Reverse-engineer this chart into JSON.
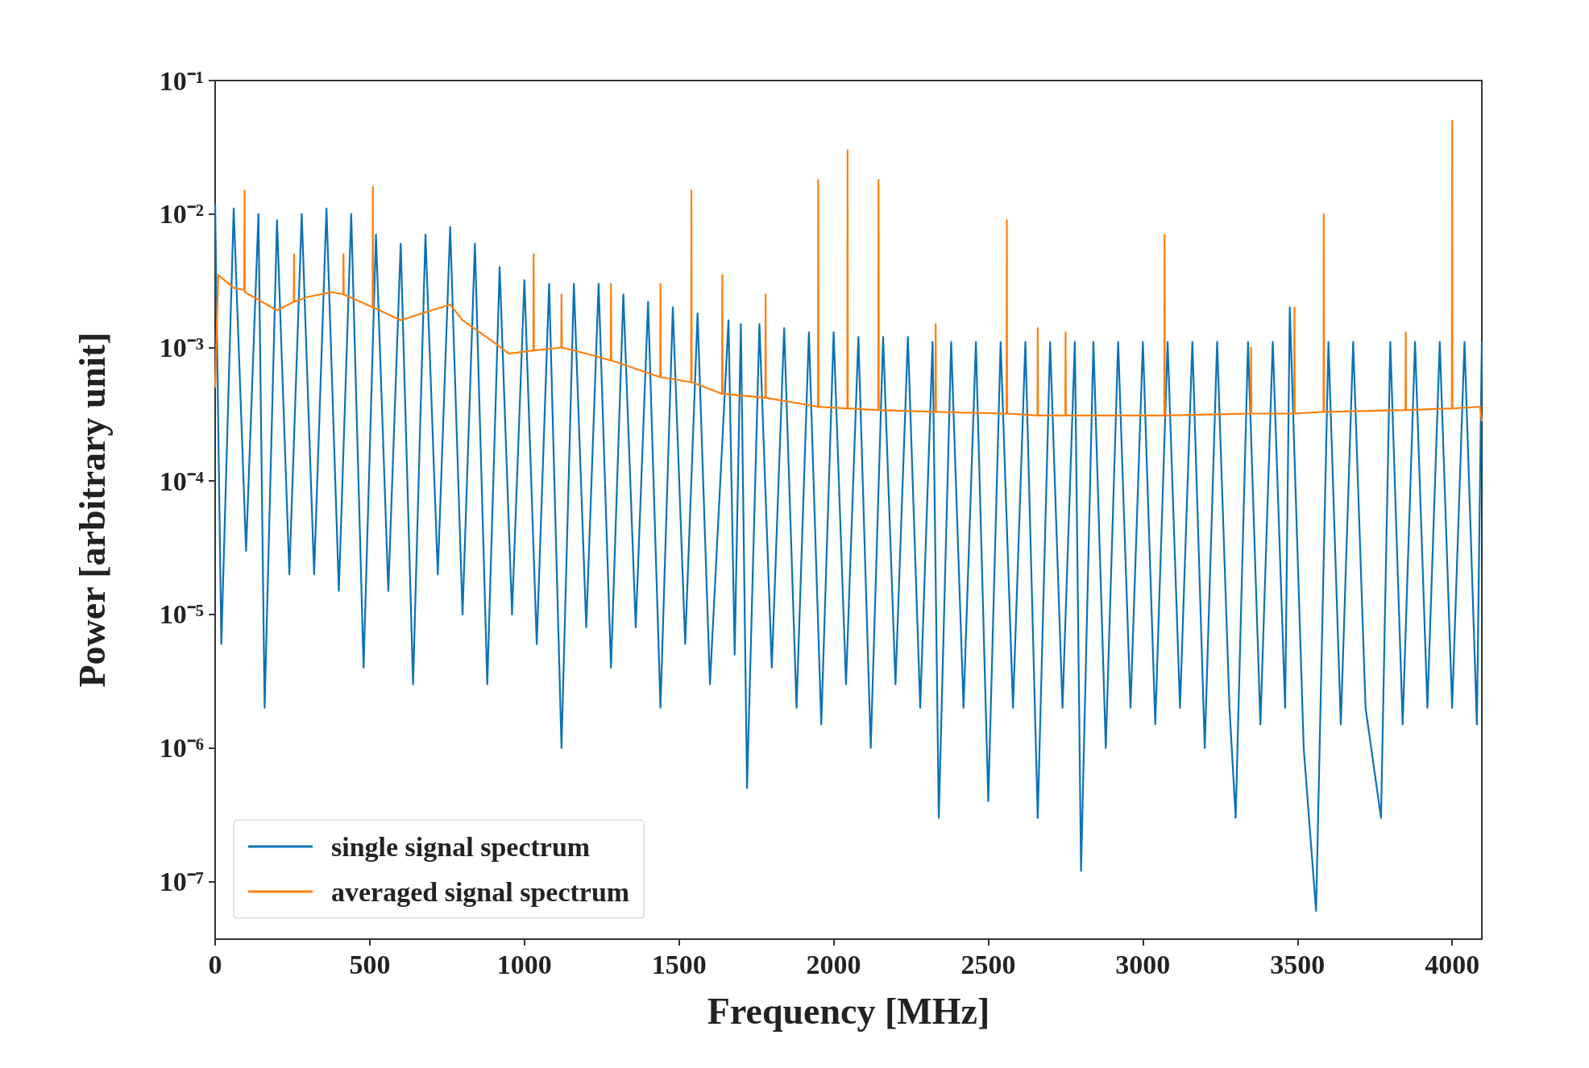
{
  "chart_data": {
    "type": "line",
    "xlabel": "Frequency [MHz]",
    "ylabel": "Power [arbitrary unit]",
    "log": "y",
    "xlim": [
      0,
      4096
    ],
    "ylim": [
      3.7e-08,
      0.1
    ],
    "xticks": [
      0,
      500,
      1000,
      1500,
      2000,
      2500,
      3000,
      3500,
      4000
    ],
    "yticks": [
      {
        "value": 1e-07,
        "label": "10⁻⁷"
      },
      {
        "value": 1e-06,
        "label": "10⁻⁶"
      },
      {
        "value": 1e-05,
        "label": "10⁻⁵"
      },
      {
        "value": 0.0001,
        "label": "10⁻⁴"
      },
      {
        "value": 0.001,
        "label": "10⁻³"
      },
      {
        "value": 0.01,
        "label": "10⁻²"
      },
      {
        "value": 0.1,
        "label": "10⁻¹"
      }
    ],
    "legend": "bottom left",
    "marker": "none",
    "line_style": "solid",
    "grid": false,
    "series": [
      {
        "name": "single signal spectrum",
        "color": "#0b72b5",
        "x": [
          0,
          20,
          60,
          100,
          140,
          160,
          200,
          240,
          280,
          320,
          360,
          400,
          440,
          480,
          520,
          560,
          600,
          640,
          680,
          720,
          760,
          800,
          840,
          880,
          920,
          960,
          1000,
          1040,
          1080,
          1120,
          1160,
          1200,
          1240,
          1280,
          1320,
          1360,
          1400,
          1440,
          1480,
          1520,
          1560,
          1600,
          1660,
          1680,
          1700,
          1720,
          1760,
          1800,
          1840,
          1880,
          1920,
          1960,
          2000,
          2040,
          2080,
          2120,
          2160,
          2200,
          2240,
          2280,
          2320,
          2340,
          2380,
          2420,
          2460,
          2500,
          2540,
          2580,
          2620,
          2660,
          2700,
          2740,
          2780,
          2800,
          2840,
          2880,
          2920,
          2960,
          3000,
          3040,
          3080,
          3120,
          3160,
          3200,
          3240,
          3280,
          3300,
          3340,
          3380,
          3420,
          3460,
          3475,
          3520,
          3560,
          3600,
          3640,
          3680,
          3720,
          3770,
          3800,
          3840,
          3880,
          3920,
          3960,
          4000,
          4040,
          4080,
          4096
        ],
        "values": [
          0.012,
          6e-06,
          0.011,
          3e-05,
          0.01,
          2e-06,
          0.009,
          2e-05,
          0.01,
          2e-05,
          0.011,
          1.5e-05,
          0.01,
          4e-06,
          0.007,
          1.5e-05,
          0.006,
          3e-06,
          0.007,
          2e-05,
          0.008,
          1e-05,
          0.006,
          3e-06,
          0.004,
          1e-05,
          0.0032,
          6e-06,
          0.003,
          1e-06,
          0.003,
          8e-06,
          0.003,
          4e-06,
          0.0025,
          8e-06,
          0.0022,
          2e-06,
          0.002,
          6e-06,
          0.0018,
          3e-06,
          0.0016,
          5e-06,
          0.0015,
          5e-07,
          0.0015,
          4e-06,
          0.0014,
          2e-06,
          0.0013,
          1.5e-06,
          0.0013,
          3e-06,
          0.0012,
          1e-06,
          0.0012,
          3e-06,
          0.0012,
          2e-06,
          0.0011,
          3e-07,
          0.0011,
          2e-06,
          0.0011,
          4e-07,
          0.0011,
          2e-06,
          0.0011,
          3e-07,
          0.0011,
          2e-06,
          0.0011,
          1.2e-07,
          0.0011,
          1e-06,
          0.0011,
          2e-06,
          0.0011,
          1.5e-06,
          0.0011,
          2e-06,
          0.0011,
          1e-06,
          0.0011,
          2e-06,
          3e-07,
          0.0011,
          1.5e-06,
          0.0011,
          2e-06,
          0.002,
          1e-06,
          6e-08,
          0.0011,
          1.5e-06,
          0.0011,
          2e-06,
          3e-07,
          0.0011,
          1.5e-06,
          0.0011,
          2e-06,
          0.0011,
          2e-06,
          0.0011,
          1.5e-06,
          0.0011
        ]
      },
      {
        "name": "averaged signal spectrum",
        "color": "#ff7f0e",
        "x": [
          0,
          10,
          60,
          94,
          95,
          96,
          200,
          254,
          255,
          256,
          300,
          380,
          414,
          415,
          416,
          509,
          510,
          511,
          600,
          700,
          760,
          800,
          900,
          950,
          1029,
          1030,
          1031,
          1119,
          1120,
          1121,
          1200,
          1279,
          1280,
          1281,
          1439,
          1440,
          1441,
          1539,
          1540,
          1541,
          1639,
          1640,
          1641,
          1779,
          1780,
          1781,
          1949,
          1950,
          1951,
          2044,
          2045,
          2046,
          2144,
          2145,
          2146,
          2329,
          2330,
          2331,
          2559,
          2560,
          2561,
          2659,
          2660,
          2661,
          2749,
          2750,
          2751,
          3069,
          3070,
          3071,
          3349,
          3350,
          3351,
          3489,
          3490,
          3491,
          3584,
          3585,
          3586,
          3849,
          3850,
          3851,
          3999,
          4000,
          4001,
          4090,
          4096
        ],
        "values": [
          0.0005,
          0.0035,
          0.0028,
          0.0027,
          0.015,
          0.0026,
          0.0019,
          0.0022,
          0.005,
          0.0022,
          0.0024,
          0.0026,
          0.0025,
          0.005,
          0.0025,
          0.002,
          0.016,
          0.002,
          0.0016,
          0.0019,
          0.0021,
          0.0016,
          0.0011,
          0.0009,
          0.00095,
          0.005,
          0.00095,
          0.001,
          0.0025,
          0.001,
          0.0009,
          0.0008,
          0.003,
          0.0008,
          0.0006,
          0.003,
          0.0006,
          0.00055,
          0.015,
          0.00055,
          0.00045,
          0.0035,
          0.00045,
          0.00042,
          0.0025,
          0.00042,
          0.00036,
          0.018,
          0.00036,
          0.00035,
          0.03,
          0.00035,
          0.00034,
          0.018,
          0.00034,
          0.00033,
          0.0015,
          0.00033,
          0.00032,
          0.009,
          0.00032,
          0.00031,
          0.0014,
          0.00031,
          0.00031,
          0.0013,
          0.00031,
          0.00031,
          0.007,
          0.00031,
          0.00032,
          0.001,
          0.00032,
          0.00032,
          0.002,
          0.00032,
          0.00033,
          0.01,
          0.00033,
          0.00034,
          0.0013,
          0.00034,
          0.00035,
          0.05,
          0.00035,
          0.00036,
          0.00028
        ]
      }
    ]
  }
}
